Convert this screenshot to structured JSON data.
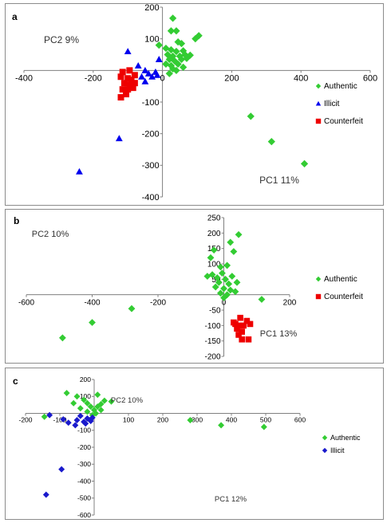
{
  "colors": {
    "authentic": "#33cc33",
    "illicit_a": "#0000ee",
    "illicit_c": "#1a1acc",
    "counterfeit": "#ee0000",
    "axis": "#808080"
  },
  "chart_data": [
    {
      "panel": "a",
      "type": "scatter",
      "xlabel": "PC1 11%",
      "ylabel": "PC2 9%",
      "xlim": [
        -400,
        600
      ],
      "ylim": [
        -400,
        200
      ],
      "xticks": [
        -400,
        -200,
        0,
        200,
        400,
        600
      ],
      "yticks": [
        200,
        100,
        -100,
        -200,
        -300,
        -400
      ],
      "legend_position": "right",
      "series": [
        {
          "name": "Authentic",
          "marker": "diamond",
          "points": [
            [
              30,
              165
            ],
            [
              25,
              125
            ],
            [
              40,
              125
            ],
            [
              105,
              110
            ],
            [
              95,
              100
            ],
            [
              -10,
              80
            ],
            [
              45,
              90
            ],
            [
              55,
              85
            ],
            [
              10,
              70
            ],
            [
              25,
              65
            ],
            [
              40,
              60
            ],
            [
              60,
              62
            ],
            [
              15,
              50
            ],
            [
              30,
              45
            ],
            [
              50,
              45
            ],
            [
              65,
              50
            ],
            [
              80,
              48
            ],
            [
              20,
              35
            ],
            [
              35,
              30
            ],
            [
              55,
              35
            ],
            [
              70,
              38
            ],
            [
              10,
              20
            ],
            [
              25,
              15
            ],
            [
              45,
              20
            ],
            [
              30,
              5
            ],
            [
              20,
              -10
            ],
            [
              40,
              0
            ],
            [
              60,
              10
            ],
            [
              255,
              -145
            ],
            [
              315,
              -225
            ],
            [
              410,
              -295
            ]
          ]
        },
        {
          "name": "Illicit",
          "marker": "triangle",
          "points": [
            [
              -100,
              60
            ],
            [
              -70,
              15
            ],
            [
              -10,
              35
            ],
            [
              -50,
              0
            ],
            [
              -20,
              -5
            ],
            [
              -40,
              -10
            ],
            [
              -30,
              -20
            ],
            [
              -60,
              -20
            ],
            [
              -50,
              -35
            ],
            [
              -15,
              -15
            ],
            [
              -125,
              -215
            ],
            [
              -240,
              -320
            ]
          ]
        },
        {
          "name": "Counterfeit",
          "marker": "square",
          "points": [
            [
              -115,
              -5
            ],
            [
              -95,
              0
            ],
            [
              -120,
              -20
            ],
            [
              -100,
              -25
            ],
            [
              -80,
              -15
            ],
            [
              -110,
              -40
            ],
            [
              -95,
              -45
            ],
            [
              -80,
              -40
            ],
            [
              -115,
              -60
            ],
            [
              -100,
              -60
            ],
            [
              -120,
              -85
            ],
            [
              -105,
              -75
            ],
            [
              -90,
              -30
            ],
            [
              -85,
              -55
            ]
          ]
        }
      ]
    },
    {
      "panel": "b",
      "type": "scatter",
      "xlabel": "PC1 13%",
      "ylabel": "PC2 10%",
      "xlim": [
        -600,
        200
      ],
      "ylim": [
        -200,
        250
      ],
      "xticks": [
        -600,
        -400,
        -200,
        0,
        200
      ],
      "yticks": [
        250,
        200,
        150,
        100,
        50,
        -50,
        -100,
        -150,
        -200
      ],
      "legend_position": "right",
      "series": [
        {
          "name": "Authentic",
          "marker": "diamond",
          "points": [
            [
              45,
              195
            ],
            [
              20,
              170
            ],
            [
              30,
              140
            ],
            [
              -30,
              145
            ],
            [
              -40,
              120
            ],
            [
              10,
              95
            ],
            [
              -10,
              90
            ],
            [
              -50,
              60
            ],
            [
              -35,
              65
            ],
            [
              -20,
              55
            ],
            [
              -5,
              70
            ],
            [
              25,
              60
            ],
            [
              5,
              50
            ],
            [
              -15,
              40
            ],
            [
              15,
              35
            ],
            [
              40,
              40
            ],
            [
              -25,
              25
            ],
            [
              0,
              20
            ],
            [
              20,
              15
            ],
            [
              35,
              10
            ],
            [
              -10,
              5
            ],
            [
              10,
              0
            ],
            [
              0,
              -10
            ],
            [
              115,
              -15
            ],
            [
              -280,
              -45
            ],
            [
              -400,
              -90
            ],
            [
              -490,
              -140
            ]
          ]
        },
        {
          "name": "Counterfeit",
          "marker": "square",
          "points": [
            [
              50,
              -75
            ],
            [
              70,
              -85
            ],
            [
              30,
              -90
            ],
            [
              45,
              -100
            ],
            [
              60,
              -100
            ],
            [
              80,
              -95
            ],
            [
              40,
              -110
            ],
            [
              55,
              -120
            ],
            [
              45,
              -130
            ],
            [
              55,
              -145
            ],
            [
              75,
              -145
            ],
            [
              35,
              -95
            ]
          ]
        }
      ]
    },
    {
      "panel": "c",
      "type": "scatter",
      "xlabel": "PC1 12%",
      "ylabel": "PC2 10%",
      "xlim": [
        -200,
        600
      ],
      "ylim": [
        -600,
        200
      ],
      "xticks": [
        -200,
        -100,
        100,
        200,
        300,
        400,
        500,
        600
      ],
      "yticks": [
        200,
        100,
        -100,
        -200,
        -300,
        -400,
        -500,
        -600
      ],
      "legend_position": "right",
      "series": [
        {
          "name": "Authentic",
          "marker": "diamond",
          "points": [
            [
              -80,
              120
            ],
            [
              -50,
              100
            ],
            [
              10,
              110
            ],
            [
              -30,
              80
            ],
            [
              30,
              75
            ],
            [
              -60,
              60
            ],
            [
              -20,
              60
            ],
            [
              20,
              55
            ],
            [
              50,
              70
            ],
            [
              -10,
              40
            ],
            [
              10,
              40
            ],
            [
              -40,
              30
            ],
            [
              0,
              20
            ],
            [
              20,
              20
            ],
            [
              -20,
              10
            ],
            [
              5,
              0
            ],
            [
              -5,
              -10
            ],
            [
              280,
              -40
            ],
            [
              -145,
              -20
            ],
            [
              370,
              -70
            ],
            [
              495,
              -80
            ]
          ]
        },
        {
          "name": "Illicit",
          "marker": "diamond",
          "points": [
            [
              -130,
              -10
            ],
            [
              -90,
              -35
            ],
            [
              -40,
              -15
            ],
            [
              -20,
              -30
            ],
            [
              -5,
              -25
            ],
            [
              -50,
              -40
            ],
            [
              -30,
              -50
            ],
            [
              -10,
              -45
            ],
            [
              -55,
              -70
            ],
            [
              -25,
              -60
            ],
            [
              -75,
              -55
            ],
            [
              -95,
              -330
            ],
            [
              -140,
              -480
            ]
          ]
        }
      ]
    }
  ]
}
